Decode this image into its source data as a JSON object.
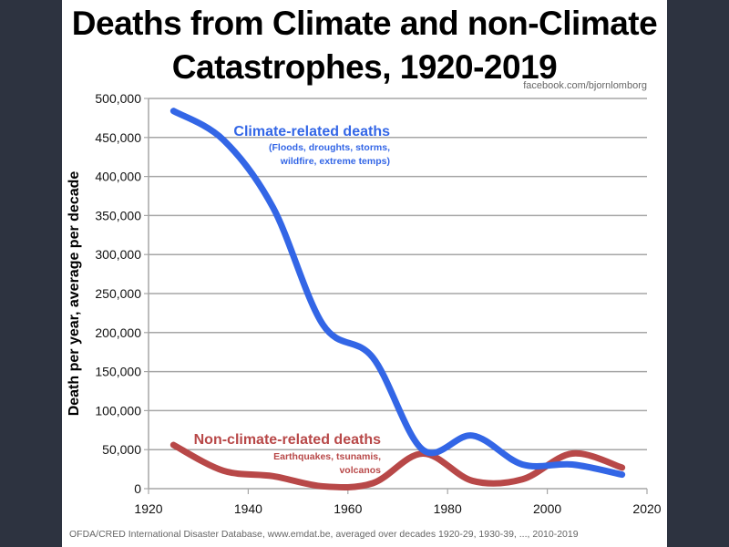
{
  "chart_data": {
    "type": "line",
    "title": "Deaths from Climate and non-Climate Catastrophes, 1920-2019",
    "title_lines": [
      "Deaths from Climate and non-Climate",
      "Catastrophes, 1920-2019"
    ],
    "xlabel": "",
    "ylabel": "Death per year, average per decade",
    "xlim": [
      1920,
      2020
    ],
    "ylim": [
      0,
      500000
    ],
    "x_ticks": [
      1920,
      1940,
      1960,
      1980,
      2000,
      2020
    ],
    "x_tick_labels": [
      "1920",
      "1940",
      "1960",
      "1980",
      "2000",
      "2020"
    ],
    "y_ticks": [
      0,
      50000,
      100000,
      150000,
      200000,
      250000,
      300000,
      350000,
      400000,
      450000,
      500000
    ],
    "y_tick_labels": [
      "0",
      "50,000",
      "100,000",
      "150,000",
      "200,000",
      "250,000",
      "300,000",
      "350,000",
      "400,000",
      "450,000",
      "500,000"
    ],
    "grid": "horizontal",
    "x": [
      1925,
      1935,
      1945,
      1955,
      1965,
      1975,
      1985,
      1995,
      2005,
      2015
    ],
    "series": [
      {
        "name": "Climate-related deaths",
        "color": "#3366e6",
        "values": [
          484000,
          447000,
          360000,
          210000,
          168000,
          50000,
          68000,
          31000,
          31000,
          18000
        ],
        "annotation": "Climate-related deaths",
        "annotation_sub": [
          "(Floods, droughts, storms,",
          "wildfire, extreme temps)"
        ]
      },
      {
        "name": "Non-climate-related deaths",
        "color": "#b84848",
        "values": [
          56000,
          23000,
          16000,
          3000,
          7000,
          45000,
          10000,
          12000,
          45000,
          27000
        ],
        "annotation": "Non-climate-related deaths",
        "annotation_sub": [
          "Earthquakes, tsunamis,",
          "volcanos"
        ]
      }
    ],
    "credit": "facebook.com/bjornlomborg",
    "source": "OFDA/CRED International Disaster Database, www.emdat.be, averaged over decades 1920-29, 1930-39, ..., 2010-2019"
  }
}
